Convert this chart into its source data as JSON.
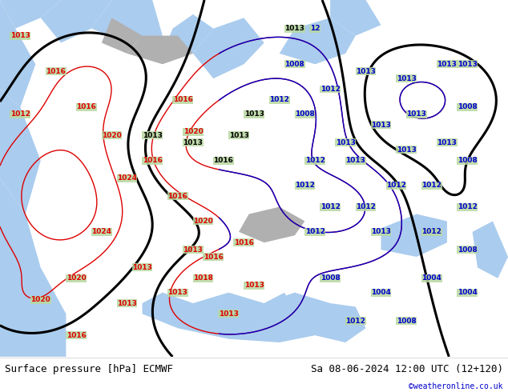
{
  "title_left": "Surface pressure [hPa] ECMWF",
  "title_right": "Sa 08-06-2024 12:00 UTC (12+120)",
  "credit": "©weatheronline.co.uk",
  "footer_fontsize": 9,
  "credit_fontsize": 7,
  "land_color": "#b8d8a0",
  "sea_color": "#aaccee",
  "mountain_color": "#b0b0b0",
  "footer_bg": "#ffffff",
  "red_color": "#dd0000",
  "blue_color": "#0000cc",
  "black_color": "#000000",
  "label_fs": 6.5
}
